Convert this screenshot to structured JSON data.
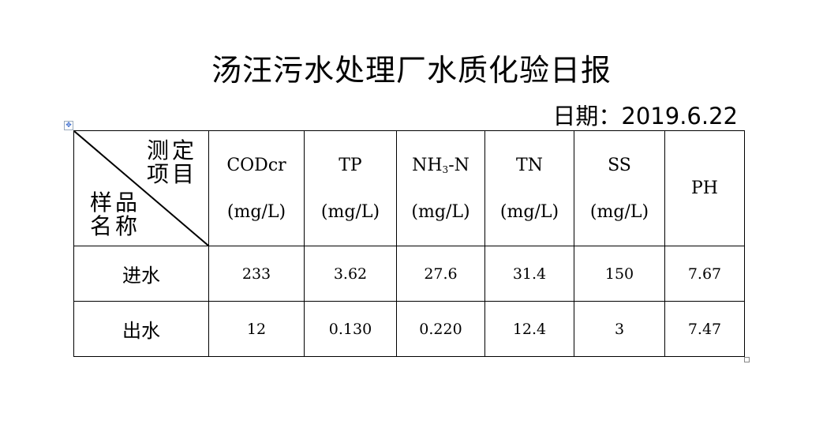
{
  "title": "汤汪污水处理厂水质化验日报",
  "date": "日期：2019.6.22",
  "table": {
    "corner_top": [
      "测定",
      "项目"
    ],
    "corner_bottom": [
      "样品",
      "名称"
    ],
    "columns": [
      {
        "name": "CODcr",
        "unit": "(mg/L)"
      },
      {
        "name_main": "NH",
        "name_sub": "3",
        "name_tail": "-N",
        "unit": "(mg/L)"
      },
      {
        "name": "TP",
        "unit": "(mg/L)"
      },
      {
        "name": "TN",
        "unit": "(mg/L)"
      },
      {
        "name": "SS",
        "unit": "(mg/L)"
      },
      {
        "name": "PH"
      }
    ],
    "rows": [
      {
        "label": "进水",
        "values": [
          "233",
          "3.62",
          "27.6",
          "31.4",
          "150",
          "7.67"
        ]
      },
      {
        "label": "出水",
        "values": [
          "12",
          "0.130",
          "0.220",
          "12.4",
          "3",
          "7.47"
        ]
      }
    ]
  }
}
